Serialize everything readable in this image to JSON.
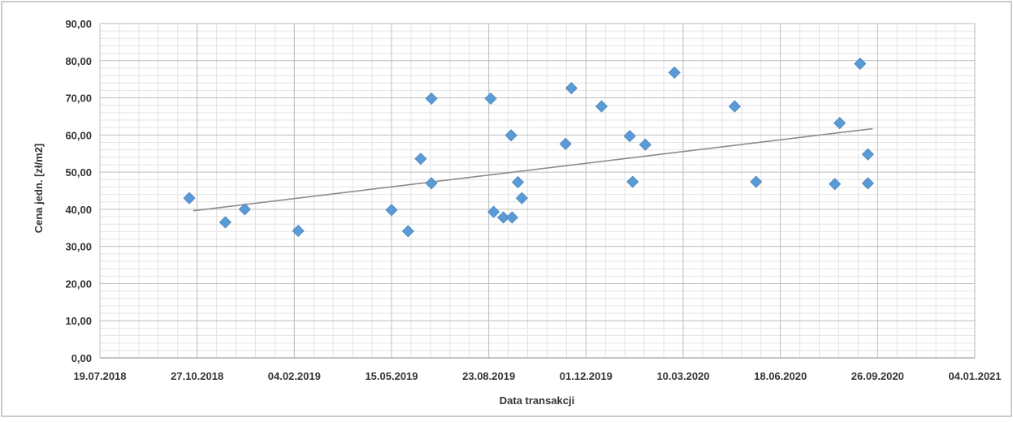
{
  "chart_data": {
    "type": "scatter",
    "title": "",
    "xlabel": "Data transakcji",
    "ylabel": "Cena jedn. [zł/m2]",
    "xlim": [
      "2018-07-19",
      "2021-01-04"
    ],
    "ylim": [
      0,
      90
    ],
    "x_tick_labels": [
      "19.07.2018",
      "27.10.2018",
      "04.02.2019",
      "15.05.2019",
      "23.08.2019",
      "01.12.2019",
      "10.03.2020",
      "18.06.2020",
      "26.09.2020",
      "04.01.2021"
    ],
    "y_tick_labels": [
      "0,00",
      "10,00",
      "20,00",
      "30,00",
      "40,00",
      "50,00",
      "60,00",
      "70,00",
      "80,00",
      "90,00"
    ],
    "grid": true,
    "legend": "none",
    "marker": "diamond",
    "marker_color": "#5b9bd5",
    "trendline": {
      "type": "linear",
      "color": "#8c8c8c",
      "start": {
        "x": "2018-10-23",
        "y": 39.6
      },
      "end": {
        "x": "2020-09-21",
        "y": 61.7
      }
    },
    "points": [
      {
        "x": "2018-10-19",
        "y": 43.0
      },
      {
        "x": "2018-11-25",
        "y": 36.5
      },
      {
        "x": "2018-12-15",
        "y": 40.0
      },
      {
        "x": "2019-02-08",
        "y": 34.2
      },
      {
        "x": "2019-05-15",
        "y": 39.8
      },
      {
        "x": "2019-06-01",
        "y": 34.1
      },
      {
        "x": "2019-06-14",
        "y": 53.6
      },
      {
        "x": "2019-06-25",
        "y": 69.8
      },
      {
        "x": "2019-06-25",
        "y": 47.0
      },
      {
        "x": "2019-08-25",
        "y": 69.8
      },
      {
        "x": "2019-08-28",
        "y": 39.3
      },
      {
        "x": "2019-09-07",
        "y": 37.8
      },
      {
        "x": "2019-09-15",
        "y": 59.9
      },
      {
        "x": "2019-09-16",
        "y": 37.8
      },
      {
        "x": "2019-09-22",
        "y": 47.3
      },
      {
        "x": "2019-09-26",
        "y": 43.0
      },
      {
        "x": "2019-11-10",
        "y": 57.6
      },
      {
        "x": "2019-11-16",
        "y": 72.6
      },
      {
        "x": "2019-12-17",
        "y": 67.7
      },
      {
        "x": "2020-01-15",
        "y": 59.7
      },
      {
        "x": "2020-01-18",
        "y": 47.4
      },
      {
        "x": "2020-01-31",
        "y": 57.4
      },
      {
        "x": "2020-03-01",
        "y": 76.8
      },
      {
        "x": "2020-05-02",
        "y": 67.7
      },
      {
        "x": "2020-05-24",
        "y": 47.4
      },
      {
        "x": "2020-08-13",
        "y": 46.8
      },
      {
        "x": "2020-08-18",
        "y": 63.2
      },
      {
        "x": "2020-09-08",
        "y": 79.2
      },
      {
        "x": "2020-09-16",
        "y": 54.8
      },
      {
        "x": "2020-09-16",
        "y": 47.0
      }
    ]
  }
}
